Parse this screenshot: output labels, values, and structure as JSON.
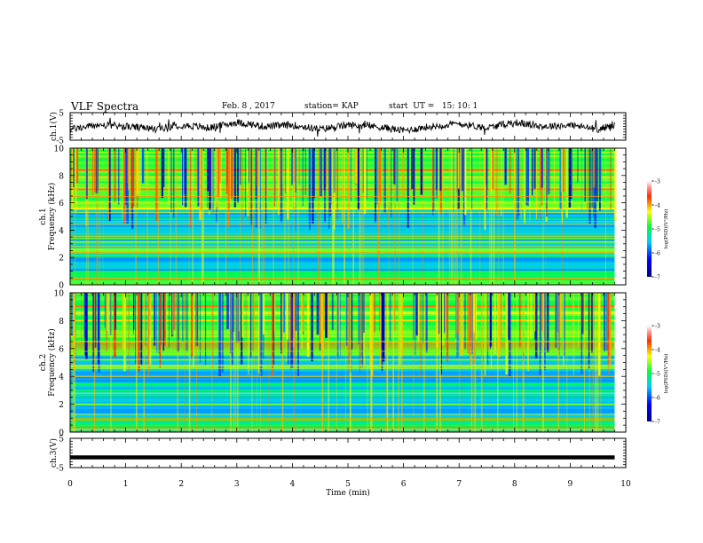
{
  "header": {
    "title": "VLF Spectra",
    "date": "Feb. 8 , 2017",
    "station": "station= KAP",
    "start": "start  UT =   15: 10: 1"
  },
  "chart_data": [
    {
      "type": "line",
      "panel": "ch1-waveform",
      "ylabel": "ch.1(V)",
      "ylim": [
        -5,
        5
      ],
      "yticks": [
        "5",
        "-5"
      ],
      "xlim": [
        0,
        10
      ],
      "description_series": "noisy waveform around 0 V",
      "x": [
        0.0,
        0.5,
        1.0,
        1.5,
        2.0,
        2.5,
        3.0,
        3.5,
        4.0,
        4.5,
        5.0,
        5.5,
        6.0,
        6.5,
        7.0,
        7.5,
        8.0,
        8.5,
        9.0,
        9.5,
        9.8
      ],
      "y": [
        -1.0,
        0.5,
        0.0,
        -1.0,
        0.5,
        -0.5,
        1.5,
        0.0,
        0.5,
        -1.0,
        0.5,
        0.0,
        -1.5,
        0.0,
        1.0,
        -0.5,
        1.5,
        0.0,
        0.5,
        -1.0,
        0.5
      ]
    },
    {
      "type": "heatmap",
      "panel": "ch1-spectrogram",
      "ylabel": "ch.1\nFrequency (kHz)",
      "yticks": [
        "0",
        "2",
        "4",
        "6",
        "8",
        "10"
      ],
      "ylim": [
        0,
        10
      ],
      "xlim": [
        0,
        9.8
      ],
      "colorbar": {
        "label": "log(PSD)(V²/Hz)",
        "ticks": [
          "-3",
          "-4",
          "-5",
          "-6",
          "-7"
        ],
        "range": [
          -7,
          -3
        ]
      }
    },
    {
      "type": "heatmap",
      "panel": "ch2-spectrogram",
      "ylabel": "ch.2\nFrequency (kHz)",
      "yticks": [
        "0",
        "2",
        "4",
        "6",
        "8",
        "10"
      ],
      "ylim": [
        0,
        10
      ],
      "xlim": [
        0,
        9.8
      ],
      "colorbar": {
        "label": "log(PSD)(V²/Hz)",
        "ticks": [
          "-3",
          "-4",
          "-5",
          "-6",
          "-7"
        ],
        "range": [
          -7,
          -3
        ]
      }
    },
    {
      "type": "line",
      "panel": "ch3-waveform",
      "ylabel": "ch.3(V)",
      "ylim": [
        -5,
        5
      ],
      "yticks": [
        "5",
        "-5"
      ],
      "xlim": [
        0,
        10
      ],
      "x": [
        0,
        9.8
      ],
      "y": [
        -1.5,
        -1.5
      ]
    }
  ],
  "xaxis": {
    "label": "Time (min)",
    "ticks": [
      "0",
      "1",
      "2",
      "3",
      "4",
      "5",
      "6",
      "7",
      "8",
      "9",
      "10"
    ],
    "range": [
      0,
      10
    ]
  }
}
